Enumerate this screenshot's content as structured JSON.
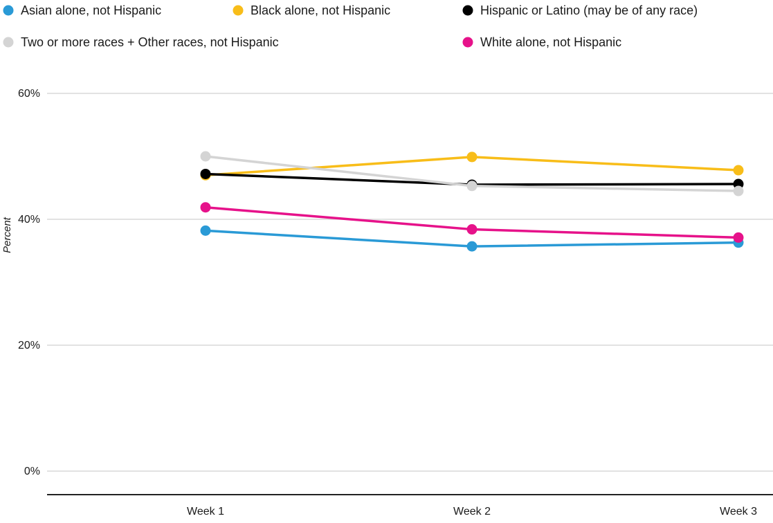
{
  "chart_data": {
    "type": "line",
    "title": "",
    "xlabel": "",
    "ylabel": "Percent",
    "categories": [
      "Week 1",
      "Week 2",
      "Week 3"
    ],
    "ylim": [
      0,
      60
    ],
    "yticks": [
      0,
      20,
      40,
      60
    ],
    "ytick_labels": [
      "0%",
      "20%",
      "40%",
      "60%"
    ],
    "grid": true,
    "legend_position": "top",
    "series": [
      {
        "name": "Asian alone, not Hispanic",
        "color": "#2a9ad6",
        "values": [
          38.2,
          35.7,
          36.3
        ]
      },
      {
        "name": "Black alone, not Hispanic",
        "color": "#f8bd19",
        "values": [
          47.0,
          49.9,
          47.8
        ]
      },
      {
        "name": "Hispanic or Latino (may be of any race)",
        "color": "#000000",
        "values": [
          47.2,
          45.5,
          45.6
        ]
      },
      {
        "name": "Two or more races + Other races, not Hispanic",
        "color": "#d4d4d4",
        "values": [
          50.0,
          45.3,
          44.5
        ]
      },
      {
        "name": "White alone, not Hispanic",
        "color": "#e6128a",
        "values": [
          41.9,
          38.4,
          37.1
        ]
      }
    ]
  }
}
